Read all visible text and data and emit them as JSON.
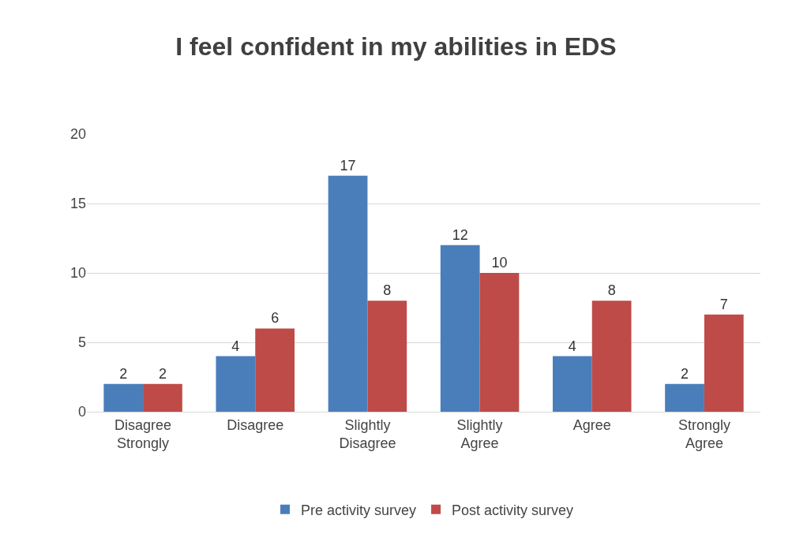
{
  "chart_data": {
    "type": "bar",
    "title": "I feel confident in my abilities in EDS",
    "categories": [
      "Disagree Strongly",
      "Disagree",
      "Slightly Disagree",
      "Slightly Agree",
      "Agree",
      "Strongly Agree"
    ],
    "series": [
      {
        "name": "Pre activity survey",
        "color": "#4a7ebb",
        "values": [
          2,
          4,
          17,
          12,
          4,
          2
        ]
      },
      {
        "name": "Post activity survey",
        "color": "#be4b48",
        "values": [
          2,
          6,
          8,
          10,
          8,
          7
        ]
      }
    ],
    "ylim": [
      0,
      20
    ],
    "yticks": [
      0,
      5,
      10,
      15,
      20
    ],
    "grid": "y",
    "legend": "bottom",
    "data_labels": true
  }
}
